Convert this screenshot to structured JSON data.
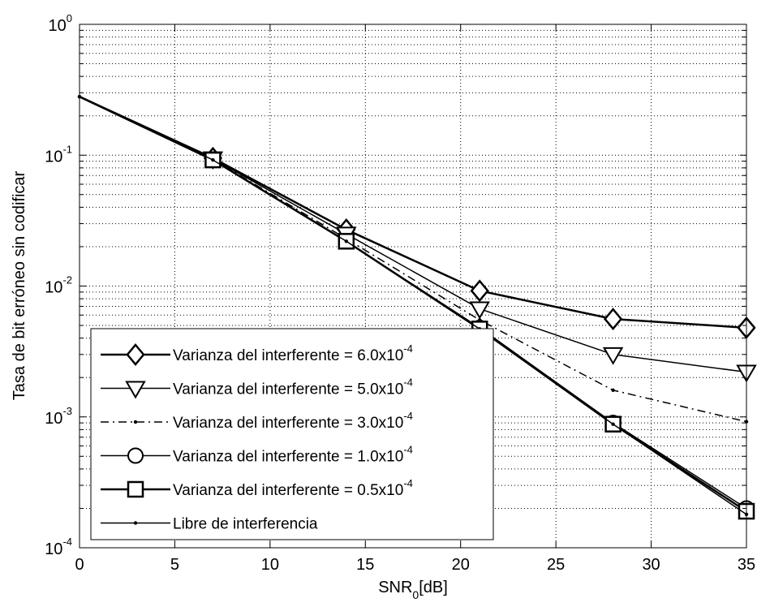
{
  "chart_data": {
    "type": "line",
    "title": "",
    "xlabel": "SNR",
    "xlabel_subscript": "0",
    "xlabel_suffix": "[dB]",
    "ylabel": "Tasa de bit erróneo sin codificar",
    "xlim": [
      0,
      35
    ],
    "ylim": [
      0.0001,
      1
    ],
    "yscale": "log",
    "grid": true,
    "legend_position": "bottom-left",
    "x_ticks": [
      "0",
      "5",
      "10",
      "15",
      "20",
      "25",
      "30",
      "35"
    ],
    "y_ticks": [
      {
        "base": "10",
        "exp": "0"
      },
      {
        "base": "10",
        "exp": "-1"
      },
      {
        "base": "10",
        "exp": "-2"
      },
      {
        "base": "10",
        "exp": "-3"
      },
      {
        "base": "10",
        "exp": "-4"
      }
    ],
    "series": [
      {
        "name": "Varianza del interferente = 6.0x10-4",
        "legend_prefix": "Varianza del interferente = 6.0x10",
        "legend_exp": "-4",
        "marker": "diamond",
        "line_style": "solid",
        "line_width": 2.5,
        "x": [
          0,
          7,
          14,
          21,
          28,
          35
        ],
        "y": [
          0.28,
          0.095,
          0.027,
          0.0092,
          0.0056,
          0.0048
        ]
      },
      {
        "name": "Varianza del interferente = 5.0x10-4",
        "legend_prefix": "Varianza del interferente = 5.0x10",
        "legend_exp": "-4",
        "marker": "triangle-down",
        "line_style": "solid",
        "line_width": 1.5,
        "x": [
          0,
          7,
          14,
          21,
          28,
          35
        ],
        "y": [
          0.28,
          0.094,
          0.025,
          0.0067,
          0.003,
          0.0022
        ]
      },
      {
        "name": "Varianza del interferente = 3.0x10-4",
        "legend_prefix": "Varianza del interferente = 3.0x10",
        "legend_exp": "-4",
        "marker": "point",
        "line_style": "dashdot",
        "line_width": 1.5,
        "x": [
          0,
          7,
          14,
          21,
          28,
          35
        ],
        "y": [
          0.28,
          0.093,
          0.023,
          0.0055,
          0.0016,
          0.00092
        ]
      },
      {
        "name": "Varianza del interferente = 1.0x10-4",
        "legend_prefix": "Varianza del interferente = 1.0x10",
        "legend_exp": "-4",
        "marker": "circle",
        "line_style": "solid",
        "line_width": 1.5,
        "x": [
          0,
          7,
          14,
          21,
          28,
          35
        ],
        "y": [
          0.28,
          0.092,
          0.022,
          0.0048,
          0.0009,
          0.0002
        ]
      },
      {
        "name": "Varianza del interferente = 0.5x10-4",
        "legend_prefix": "Varianza del interferente = 0.5x10",
        "legend_exp": "-4",
        "marker": "square",
        "line_style": "solid",
        "line_width": 2.5,
        "x": [
          0,
          7,
          14,
          21,
          28,
          35
        ],
        "y": [
          0.28,
          0.092,
          0.022,
          0.0047,
          0.00088,
          0.00019
        ]
      },
      {
        "name": "Libre de interferencia",
        "legend_prefix": "Libre de interferencia",
        "legend_exp": "",
        "marker": "point",
        "line_style": "solid",
        "line_width": 1.5,
        "x": [
          0,
          7,
          14,
          21,
          28,
          35
        ],
        "y": [
          0.28,
          0.092,
          0.022,
          0.0047,
          0.00088,
          0.00018
        ]
      }
    ]
  }
}
